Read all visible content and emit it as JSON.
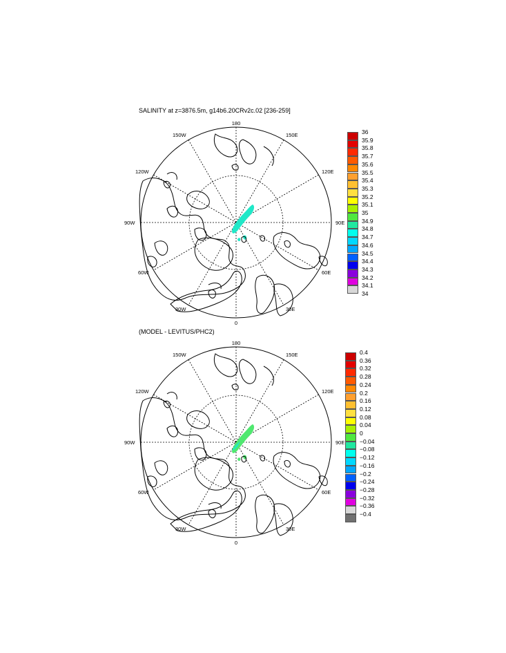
{
  "panels": [
    {
      "title": "SALINITY at z=3876.5m, g14b6.20CRv2c.02 [236-259]",
      "lon_labels": {
        "top": "180",
        "bottom": "0",
        "left": "90W",
        "right": "90E",
        "ul": "150W",
        "ur": "150E",
        "ul2": "120W",
        "ur2": "120E",
        "ll": "60W",
        "lr": "60E",
        "ll2": "30W",
        "lr2": "30E"
      },
      "colorbar": {
        "labels": [
          "36",
          "35.9",
          "35.8",
          "35.7",
          "35.6",
          "35.5",
          "35.4",
          "35.3",
          "35.2",
          "35.1",
          "35",
          "34.9",
          "34.8",
          "34.7",
          "34.6",
          "34.5",
          "34.4",
          "34.3",
          "34.2",
          "34.1",
          "34"
        ],
        "colors": [
          "#cc0000",
          "#e30000",
          "#ff2a00",
          "#ff5a00",
          "#ff8800",
          "#ffa030",
          "#ffc030",
          "#ffe040",
          "#ffff00",
          "#a8f000",
          "#50e840",
          "#20e8a0",
          "#00ffee",
          "#00d8ff",
          "#00a8ff",
          "#0060ff",
          "#0000ee",
          "#8a00dd",
          "#e000e0",
          "#d8d8d8"
        ]
      }
    },
    {
      "title": "(MODEL - LEVITUS/PHC2)",
      "lon_labels": {
        "top": "180",
        "bottom": "0",
        "left": "90W",
        "right": "90E",
        "ul": "150W",
        "ur": "150E",
        "ul2": "120W",
        "ur2": "120E",
        "ll": "60W",
        "lr": "60E",
        "ll2": "30W",
        "lr2": "30E"
      },
      "colorbar": {
        "labels": [
          "0.4",
          "0.36",
          "0.32",
          "0.28",
          "0.24",
          "0.2",
          "0.16",
          "0.12",
          "0.08",
          "0.04",
          "0",
          "−0.04",
          "−0.08",
          "−0.12",
          "−0.16",
          "−0.2",
          "−0.24",
          "−0.28",
          "−0.32",
          "−0.36",
          "−0.4"
        ],
        "colors": [
          "#cc0000",
          "#e30000",
          "#ff2a00",
          "#ff5a00",
          "#ff8800",
          "#ffa030",
          "#ffc030",
          "#ffe040",
          "#ffff00",
          "#a8f000",
          "#50e840",
          "#20e8a0",
          "#00ffee",
          "#00d8ff",
          "#00a8ff",
          "#0060ff",
          "#0000ee",
          "#8a00dd",
          "#e000e0",
          "#d8d8d8",
          "#707070"
        ]
      }
    }
  ]
}
